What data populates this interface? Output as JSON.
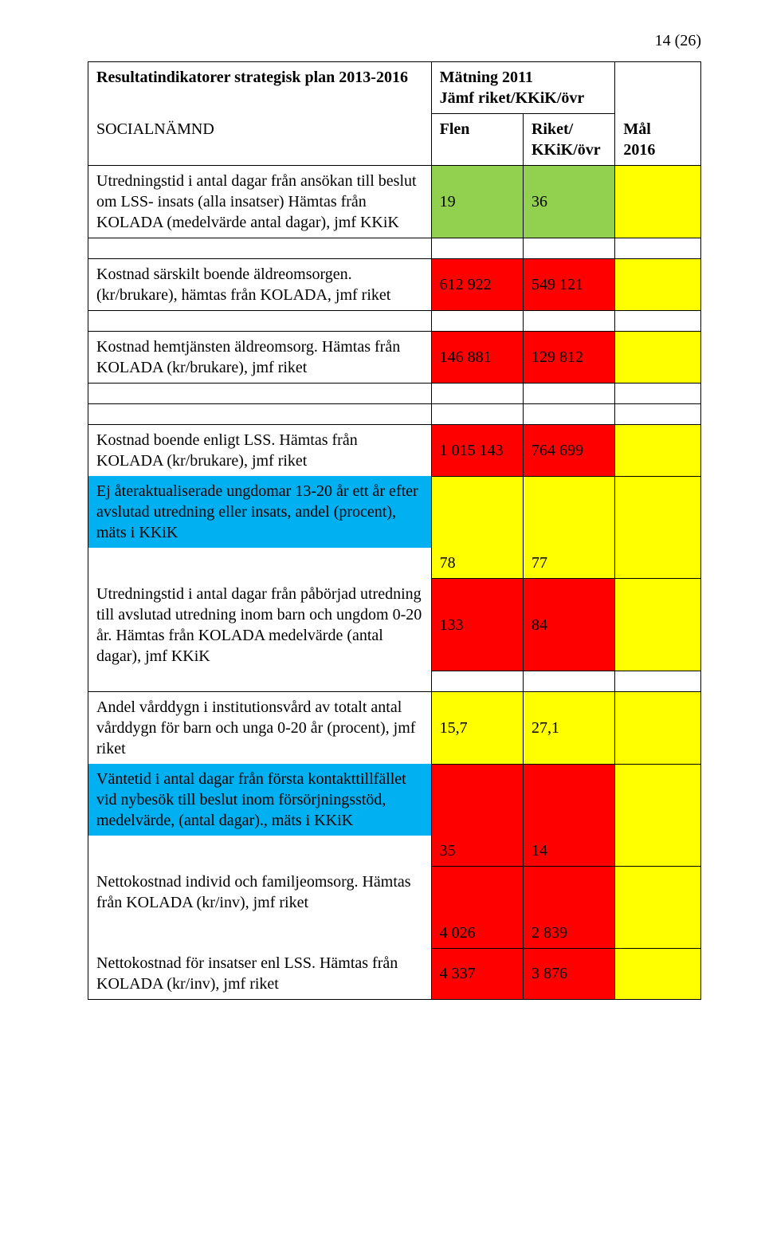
{
  "page_number": "14 (26)",
  "header": {
    "title_left": "Resultatindikatorer strategisk plan 2013-2016",
    "dept": "SOCIALNÄMND",
    "meas_title": "Mätning 2011",
    "meas_sub": "Jämf riket/KKiK/övr",
    "col_flen": "Flen",
    "col_riket": "Riket/\nKKiK/övr",
    "col_goal": "Mål\n2016"
  },
  "colors": {
    "green": "#92d050",
    "red": "#ff0000",
    "yellow": "#ffff00",
    "blue": "#00b0f0",
    "white": "#ffffff"
  },
  "rows": [
    {
      "desc": "Utredningstid i antal dagar från ansökan till beslut om LSS- insats (alla insatser) Hämtas från KOLADA (medelvärde antal dagar), jmf KKiK",
      "flen": "19",
      "riket": "36",
      "flen_bg": "#92d050",
      "riket_bg": "#92d050",
      "goal_bg": "#ffff00"
    },
    {
      "desc": "Kostnad särskilt boende äldreomsorgen. (kr/brukare), hämtas från KOLADA, jmf riket",
      "flen": "612 922",
      "riket": "549 121",
      "flen_bg": "#ff0000",
      "riket_bg": "#ff0000",
      "goal_bg": "#ffff00"
    },
    {
      "desc": "Kostnad hemtjänsten äldreomsorg. Hämtas från KOLADA (kr/brukare), jmf riket",
      "flen": "146 881",
      "riket": "129 812",
      "flen_bg": "#ff0000",
      "riket_bg": "#ff0000",
      "goal_bg": "#ffff00"
    },
    {
      "desc": "Kostnad boende enligt LSS. Hämtas från KOLADA (kr/brukare), jmf riket",
      "flen": "1 015 143",
      "riket": "764 699",
      "flen_bg": "#ff0000",
      "riket_bg": "#ff0000",
      "goal_bg": "#ffff00"
    },
    {
      "desc": "Ej återaktualiserade ungdomar 13-20 år ett år efter avslutad utredning eller insats, andel (procent), mäts i KKiK",
      "desc_bg": "#00b0f0",
      "flen": "78",
      "riket": "77",
      "flen_bg": "#ffff00",
      "riket_bg": "#ffff00",
      "goal_bg": "#ffff00"
    },
    {
      "desc": "Utredningstid i antal dagar från påbörjad utredning till avslutad utredning inom barn och ungdom 0-20 år. Hämtas från KOLADA medelvärde (antal dagar), jmf KKiK",
      "flen": "133",
      "riket": "84",
      "flen_bg": "#ff0000",
      "riket_bg": "#ff0000",
      "goal_bg": "#ffff00"
    },
    {
      "desc": "Andel vårddygn i institutionsvård av totalt antal vårddygn för barn och unga 0-20 år (procent), jmf riket",
      "flen": "15,7",
      "riket": "27,1",
      "flen_bg": "#ffff00",
      "riket_bg": "#ffff00",
      "goal_bg": "#ffff00"
    },
    {
      "desc": "Väntetid i antal dagar från första kontakttillfället vid nybesök till beslut inom försörjningsstöd, medelvärde, (antal dagar)., mäts i KKiK",
      "desc_bg": "#00b0f0",
      "flen": "35",
      "riket": "14",
      "flen_bg": "#ff0000",
      "riket_bg": "#ff0000",
      "goal_bg": "#ffff00"
    },
    {
      "desc": "Nettokostnad individ och familjeomsorg. Hämtas från KOLADA (kr/inv), jmf riket",
      "flen": "4 026",
      "riket": "2 839",
      "flen_bg": "#ff0000",
      "riket_bg": "#ff0000",
      "goal_bg": "#ffff00"
    },
    {
      "desc": "Nettokostnad för insatser enl LSS. Hämtas från KOLADA (kr/inv), jmf riket",
      "flen": "4 337",
      "riket": "3 876",
      "flen_bg": "#ff0000",
      "riket_bg": "#ff0000",
      "goal_bg": "#ffff00"
    }
  ]
}
